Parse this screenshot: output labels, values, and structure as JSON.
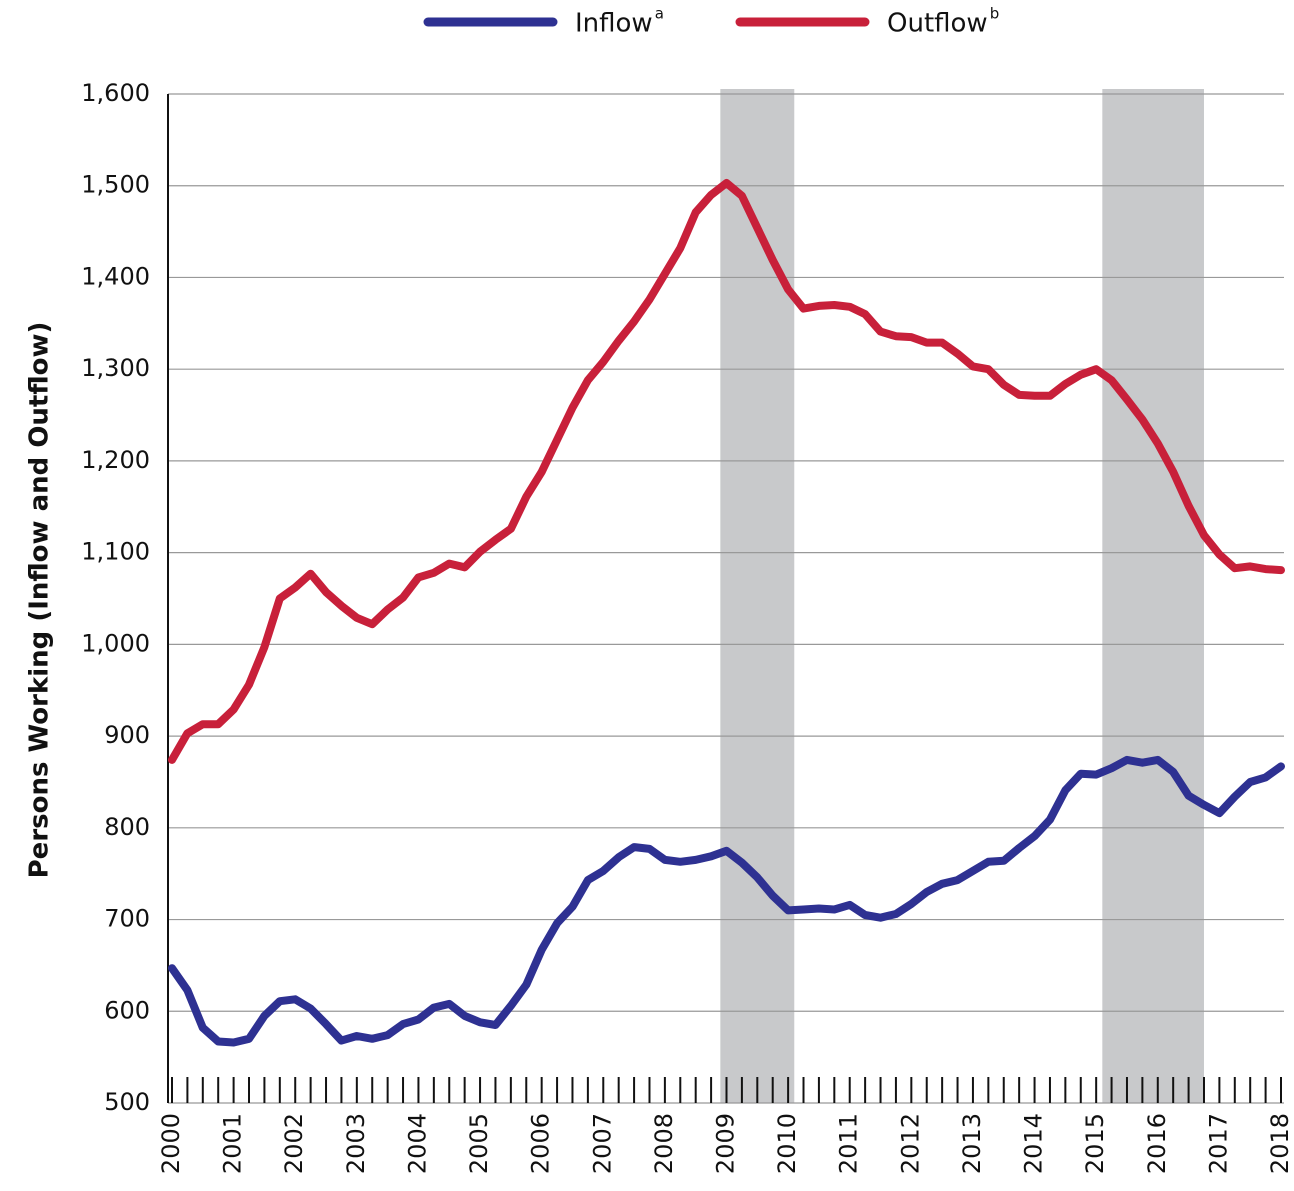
{
  "chart_data": {
    "type": "line",
    "y_label": "Persons Working (Inflow and Outflow)",
    "x": [
      2000,
      2000.25,
      2000.5,
      2000.75,
      2001,
      2001.25,
      2001.5,
      2001.75,
      2002,
      2002.25,
      2002.5,
      2002.75,
      2003,
      2003.25,
      2003.5,
      2003.75,
      2004,
      2004.25,
      2004.5,
      2004.75,
      2005,
      2005.25,
      2005.5,
      2005.75,
      2006,
      2006.25,
      2006.5,
      2006.75,
      2007,
      2007.25,
      2007.5,
      2007.75,
      2008,
      2008.25,
      2008.5,
      2008.75,
      2009,
      2009.25,
      2009.5,
      2009.75,
      2010,
      2010.25,
      2010.5,
      2010.75,
      2011,
      2011.25,
      2011.5,
      2011.75,
      2012,
      2012.25,
      2012.5,
      2012.75,
      2013,
      2013.25,
      2013.5,
      2013.75,
      2014,
      2014.25,
      2014.5,
      2014.75,
      2015,
      2015.25,
      2015.5,
      2015.75,
      2016,
      2016.25,
      2016.5,
      2016.75,
      2017,
      2017.25,
      2017.5,
      2017.75,
      2018
    ],
    "series": [
      {
        "name": "Inflow",
        "note_mark": "a",
        "color": "#2e3192",
        "values": [
          647,
          623,
          582,
          567,
          566,
          570,
          595,
          611,
          613,
          603,
          586,
          568,
          573,
          570,
          574,
          586,
          591,
          604,
          608,
          595,
          588,
          585,
          606,
          629,
          667,
          696,
          714,
          743,
          753,
          768,
          779,
          777,
          765,
          763,
          765,
          769,
          775,
          762,
          746,
          726,
          710,
          711,
          712,
          711,
          716,
          705,
          702,
          706,
          717,
          730,
          739,
          743,
          753,
          763,
          764,
          778,
          791,
          809,
          841,
          859,
          858,
          865,
          874,
          871,
          874,
          861,
          835,
          825,
          816,
          834,
          850,
          855,
          867
        ]
      },
      {
        "name": "Outflow",
        "note_mark": "b",
        "color": "#c8203a",
        "values": [
          874,
          903,
          913,
          913,
          929,
          956,
          997,
          1050,
          1062,
          1077,
          1057,
          1042,
          1029,
          1022,
          1038,
          1051,
          1073,
          1078,
          1088,
          1084,
          1101,
          1114,
          1126,
          1161,
          1188,
          1223,
          1258,
          1288,
          1308,
          1331,
          1352,
          1376,
          1404,
          1432,
          1471,
          1490,
          1503,
          1489,
          1454,
          1419,
          1387,
          1366,
          1369,
          1370,
          1368,
          1360,
          1341,
          1336,
          1335,
          1329,
          1329,
          1317,
          1303,
          1300,
          1283,
          1272,
          1271,
          1271,
          1284,
          1294,
          1300,
          1288,
          1267,
          1245,
          1219,
          1188,
          1151,
          1119,
          1098,
          1083,
          1085,
          1082,
          1081
        ]
      }
    ],
    "shaded_ranges": [
      [
        2008.9,
        2010.1
      ],
      [
        2015.1,
        2016.75
      ]
    ],
    "shade_color": "#c8c9cb",
    "xlim": [
      2000,
      2018
    ],
    "xticks": [
      2000,
      2001,
      2002,
      2003,
      2004,
      2005,
      2006,
      2007,
      2008,
      2009,
      2010,
      2011,
      2012,
      2013,
      2014,
      2015,
      2016,
      2017,
      2018
    ],
    "ylim": [
      500,
      1600
    ],
    "yticks": [
      500,
      600,
      700,
      800,
      900,
      {
        "value": 1000,
        "label": "1,000"
      },
      {
        "value": 1100,
        "label": "1,100"
      },
      {
        "value": 1200,
        "label": "1,200"
      },
      {
        "value": 1300,
        "label": "1,300"
      },
      {
        "value": 1400,
        "label": "1,400"
      },
      {
        "value": 1500,
        "label": "1,500"
      },
      {
        "value": 1600,
        "label": "1,600"
      }
    ],
    "grid": true,
    "legend": "top"
  }
}
